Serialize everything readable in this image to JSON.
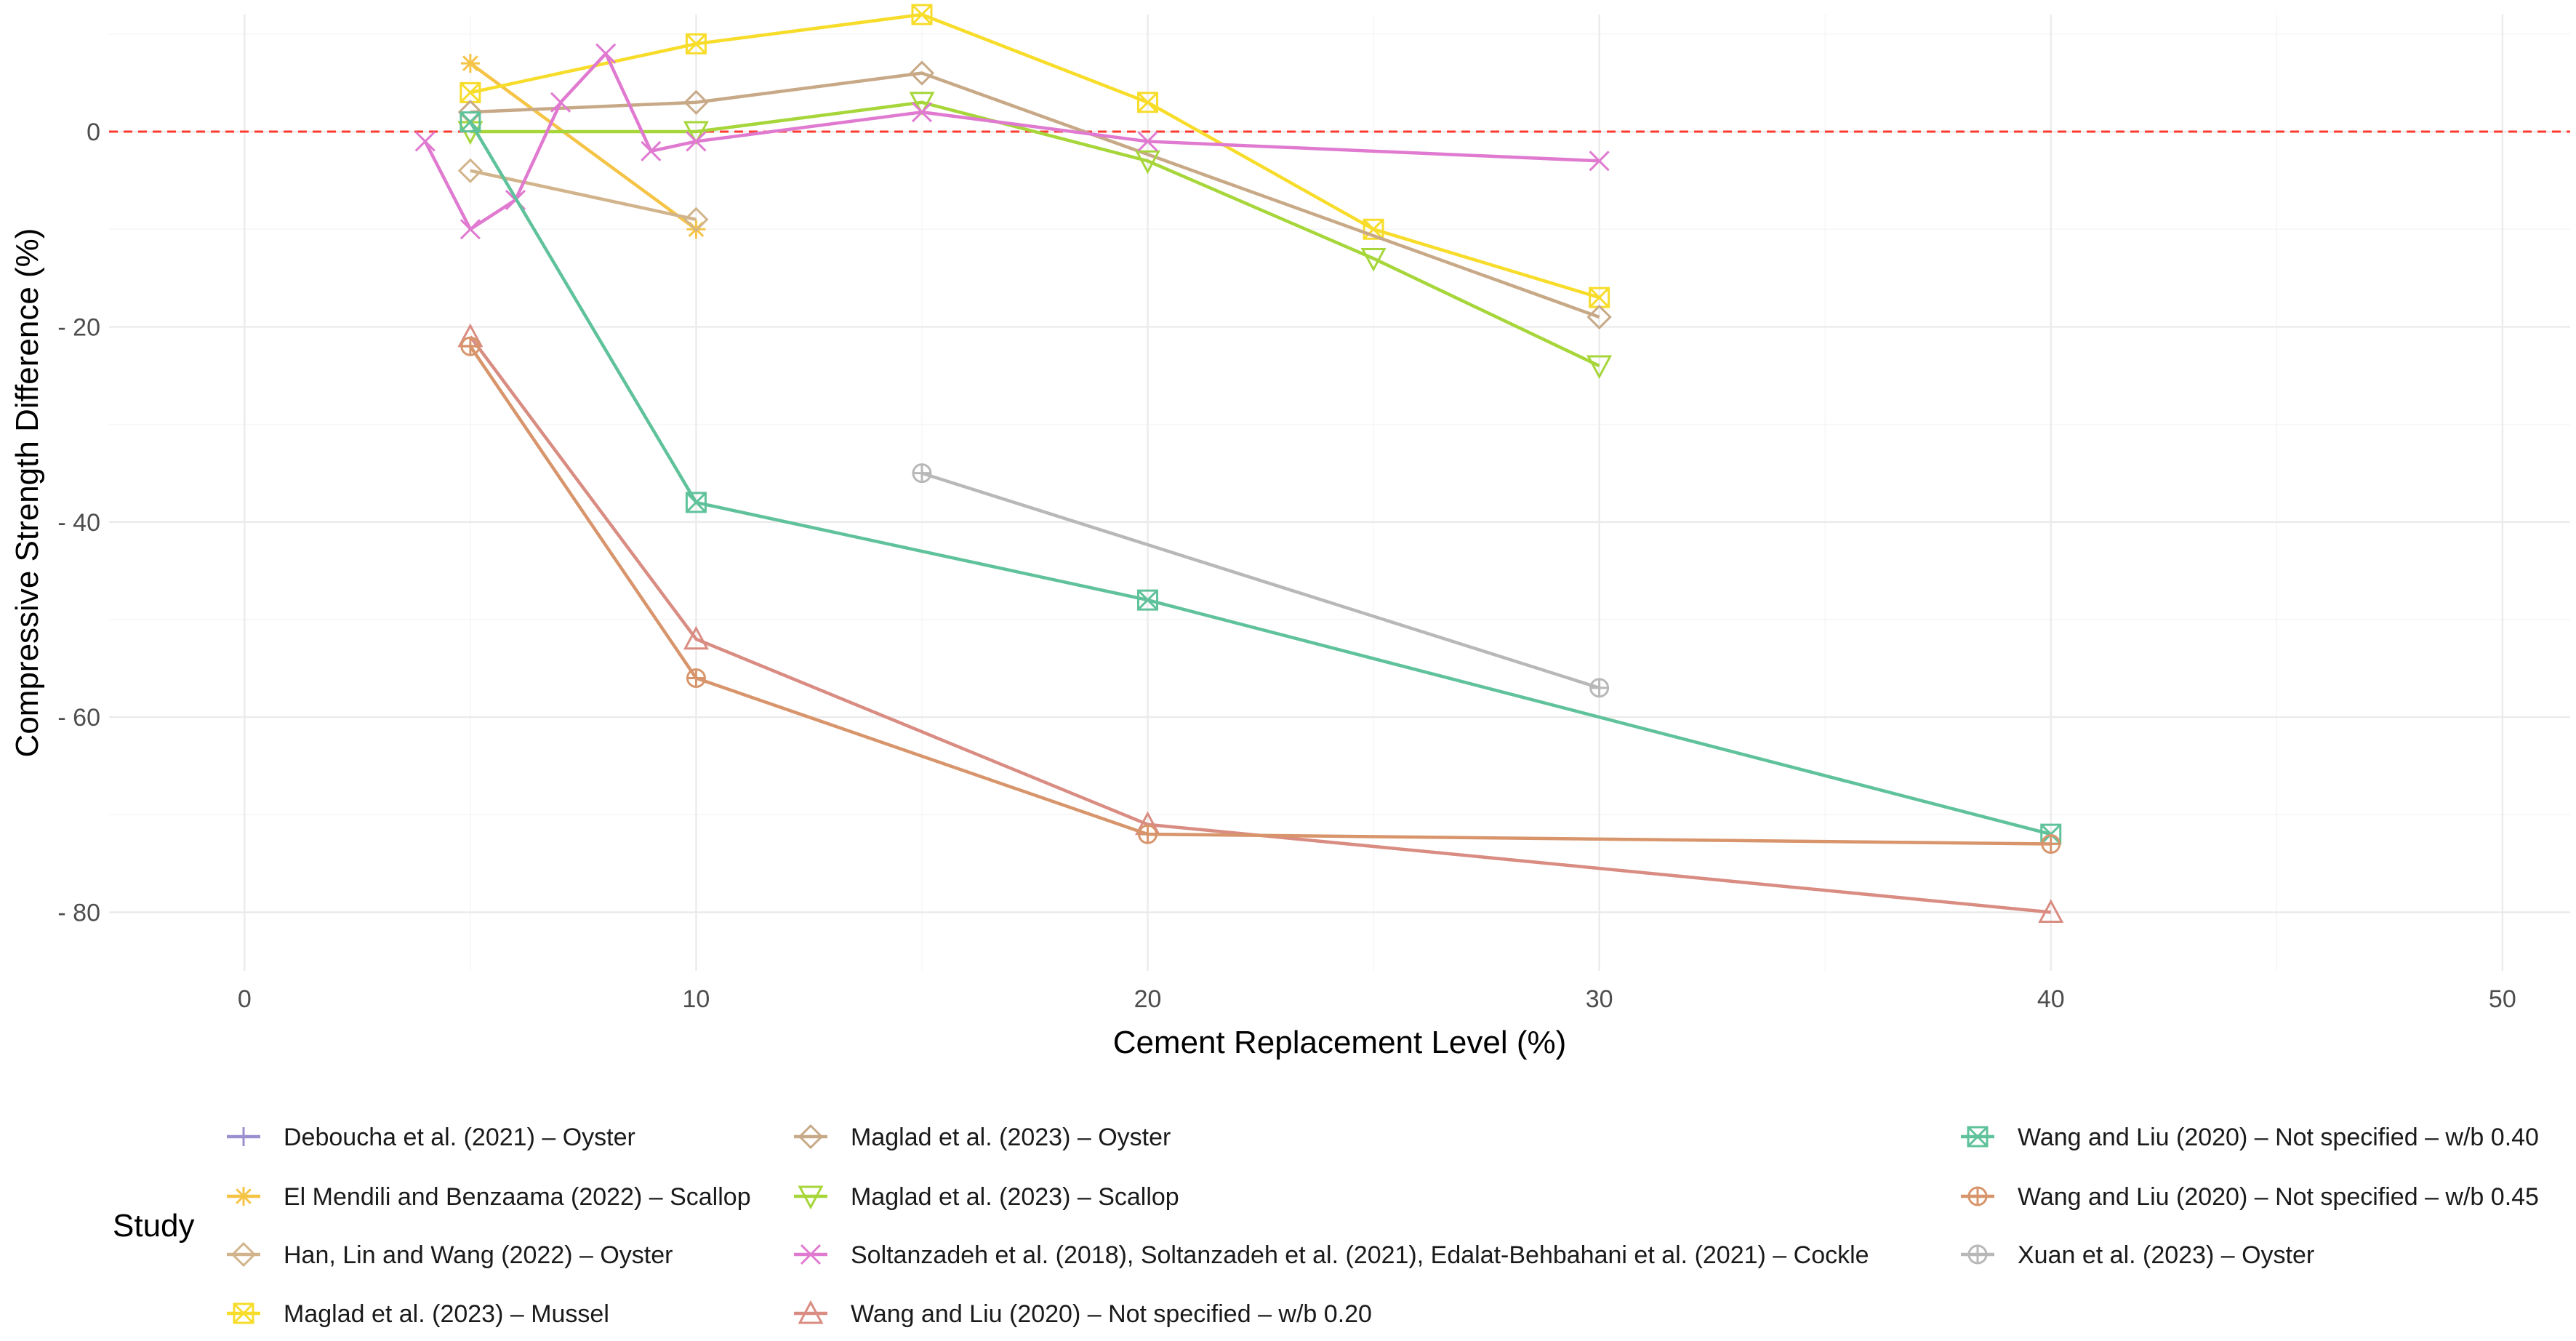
{
  "chart_data": {
    "type": "line",
    "title": "",
    "xlabel": "Cement Replacement Level (%)",
    "ylabel": "Compressive Strength Difference (%)",
    "xlim": [
      -3,
      51.5
    ],
    "ylim": [
      -86,
      12
    ],
    "x_ticks": [
      0,
      10,
      20,
      30,
      40,
      50
    ],
    "y_ticks": [
      0,
      -20,
      -40,
      -60,
      -80
    ],
    "x_tick_labels": [
      "0",
      "10",
      "20",
      "30",
      "40",
      "50"
    ],
    "y_tick_labels": [
      "0",
      "- 20",
      "- 40",
      "- 60",
      "- 80"
    ],
    "grid": true,
    "reference_line": {
      "y": 0,
      "color": "#ff3b30",
      "style": "dashed"
    },
    "legend_title": "Study",
    "legend_position": "bottom",
    "series": [
      {
        "name": "Deboucha et al. (2021) – Oyster",
        "color": "#9c8fcf",
        "marker": "plus",
        "x": [],
        "y": []
      },
      {
        "name": "El Mendili and Benzaama (2022) – Scallop",
        "color": "#f5c446",
        "marker": "asterisk",
        "x": [
          5,
          10
        ],
        "y": [
          7,
          -10
        ]
      },
      {
        "name": "Han, Lin and Wang (2022) – Oyster",
        "color": "#d2b48c",
        "marker": "diamond",
        "x": [
          5,
          10
        ],
        "y": [
          -4,
          -9
        ]
      },
      {
        "name": "Maglad et al. (2023) – Mussel",
        "color": "#f7dc2a",
        "marker": "square-x",
        "x": [
          5,
          10,
          15,
          20,
          25,
          30
        ],
        "y": [
          4,
          9,
          12,
          3,
          -10,
          -17
        ]
      },
      {
        "name": "Maglad et al. (2023) – Oyster",
        "color": "#c8a987",
        "marker": "diamond",
        "x": [
          5,
          10,
          15,
          30
        ],
        "y": [
          2,
          3,
          6,
          -19
        ]
      },
      {
        "name": "Maglad et al. (2023) – Scallop",
        "color": "#a6d63a",
        "marker": "triangle-down",
        "x": [
          5,
          10,
          15,
          20,
          25,
          30
        ],
        "y": [
          0,
          0,
          3,
          -3,
          -13,
          -24
        ]
      },
      {
        "name": "Soltanzadeh et al. (2018), Soltanzadeh et al. (2021), Edalat-Behbahani et al. (2021) – Cockle",
        "color": "#e07ad0",
        "marker": "x",
        "x": [
          4,
          5,
          6,
          7,
          8,
          9,
          10,
          15,
          20,
          30
        ],
        "y": [
          -1,
          -10,
          -7,
          3,
          8,
          -2,
          -1,
          2,
          -1,
          -3
        ]
      },
      {
        "name": "Wang and Liu (2020) – Not specified – w/b 0.20",
        "color": "#d98c82",
        "marker": "triangle",
        "x": [
          5,
          10,
          20,
          40
        ],
        "y": [
          -21,
          -52,
          -71,
          -80
        ]
      },
      {
        "name": "Wang and Liu (2020) – Not specified – w/b 0.40",
        "color": "#5fc29b",
        "marker": "square-x",
        "x": [
          5,
          10,
          20,
          40
        ],
        "y": [
          1,
          -38,
          -48,
          -72
        ]
      },
      {
        "name": "Wang and Liu (2020) – Not specified – w/b 0.45",
        "color": "#d8956c",
        "marker": "circle-plus",
        "x": [
          5,
          10,
          20,
          40
        ],
        "y": [
          -22,
          -56,
          -72,
          -73
        ]
      },
      {
        "name": "Xuan et al. (2023) – Oyster",
        "color": "#b8b8b8",
        "marker": "circle-plus",
        "x": [
          15,
          30
        ],
        "y": [
          -35,
          -57
        ]
      }
    ]
  }
}
